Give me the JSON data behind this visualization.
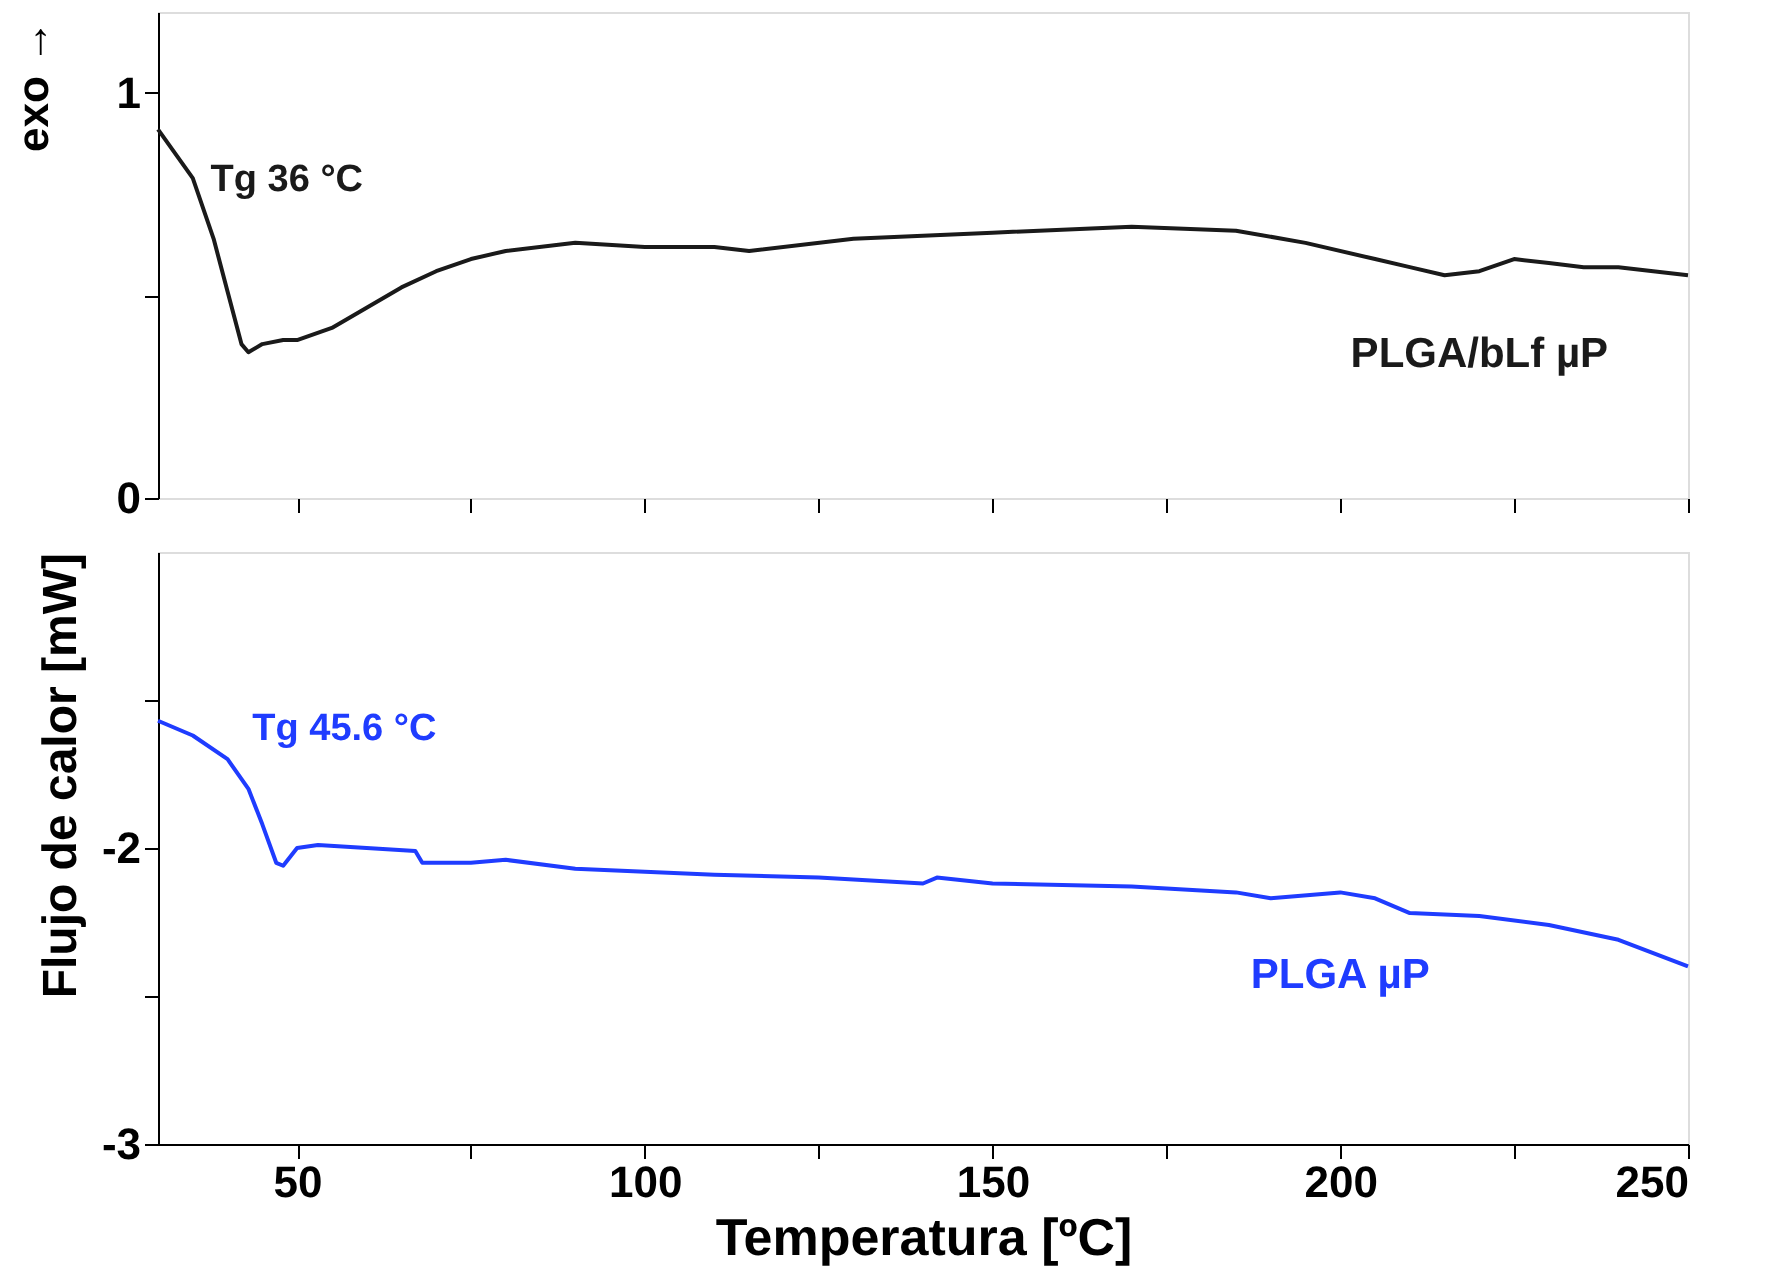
{
  "chart_data": [
    {
      "type": "line",
      "xlim": [
        30,
        250
      ],
      "xticks": [
        {
          "value": 50,
          "label": null
        },
        {
          "value": 75,
          "label": null
        },
        {
          "value": 100,
          "label": null
        },
        {
          "value": 125,
          "label": null
        },
        {
          "value": 150,
          "label": null
        },
        {
          "value": 175,
          "label": null
        },
        {
          "value": 200,
          "label": null
        },
        {
          "value": 225,
          "label": null
        },
        {
          "value": 250,
          "label": null
        }
      ],
      "ylim": [
        0,
        1.2
      ],
      "yticks": [
        0,
        {
          "value": 0.5,
          "label": null
        },
        1
      ],
      "tick_labels": "y",
      "grid": false,
      "annotations": [
        "exo →",
        {
          "text": "Tg 36 °C",
          "x": 39,
          "y": 0.6
        }
      ],
      "series": [
        {
          "name": "PLGA/bLf µP",
          "color": "#1a1a1a",
          "x": [
            30,
            35,
            38,
            40,
            42,
            43,
            45,
            48,
            50,
            55,
            60,
            65,
            70,
            75,
            80,
            90,
            100,
            110,
            115,
            130,
            150,
            170,
            185,
            195,
            205,
            210,
            215,
            220,
            225,
            230,
            235,
            240,
            245,
            250
          ],
          "values": [
            0.91,
            0.79,
            0.64,
            0.51,
            0.38,
            0.36,
            0.38,
            0.39,
            0.39,
            0.42,
            0.47,
            0.52,
            0.56,
            0.59,
            0.61,
            0.63,
            0.62,
            0.62,
            0.61,
            0.64,
            0.655,
            0.67,
            0.66,
            0.63,
            0.59,
            0.57,
            0.55,
            0.56,
            0.59,
            0.58,
            0.57,
            0.57,
            0.56,
            0.55
          ]
        }
      ]
    },
    {
      "type": "line",
      "xlim": [
        30,
        250
      ],
      "xticks": [
        50,
        {
          "value": 75,
          "label": null
        },
        100,
        {
          "value": 125,
          "label": null
        },
        150,
        {
          "value": 175,
          "label": null
        },
        200,
        {
          "value": 225,
          "label": null
        },
        250
      ],
      "ylim": [
        -3,
        -1
      ],
      "yticks": [
        -3,
        {
          "value": -2.5,
          "label": null
        },
        -2,
        {
          "value": -1.5,
          "label": null
        }
      ],
      "xlabel": "Temperatura [ºC]",
      "ylabel": "Flujo de calor [mW]",
      "grid": false,
      "annotations": [
        {
          "text": "Tg 45.6 °C",
          "x": 45,
          "y": -1.85
        }
      ],
      "series": [
        {
          "name": "PLGA µP",
          "color": "#1f3cff",
          "x": [
            30,
            35,
            40,
            43,
            45,
            47,
            48,
            50,
            53,
            60,
            67,
            68,
            75,
            80,
            90,
            100,
            110,
            125,
            140,
            142,
            150,
            170,
            185,
            190,
            200,
            205,
            210,
            220,
            230,
            240,
            250
          ],
          "values": [
            -1.57,
            -1.62,
            -1.7,
            -1.8,
            -1.92,
            -2.05,
            -2.06,
            -2.0,
            -1.99,
            -2.0,
            -2.01,
            -2.05,
            -2.05,
            -2.04,
            -2.07,
            -2.08,
            -2.09,
            -2.1,
            -2.12,
            -2.1,
            -2.12,
            -2.13,
            -2.15,
            -2.17,
            -2.15,
            -2.17,
            -2.22,
            -2.23,
            -2.26,
            -2.31,
            -2.4
          ]
        }
      ]
    }
  ]
}
